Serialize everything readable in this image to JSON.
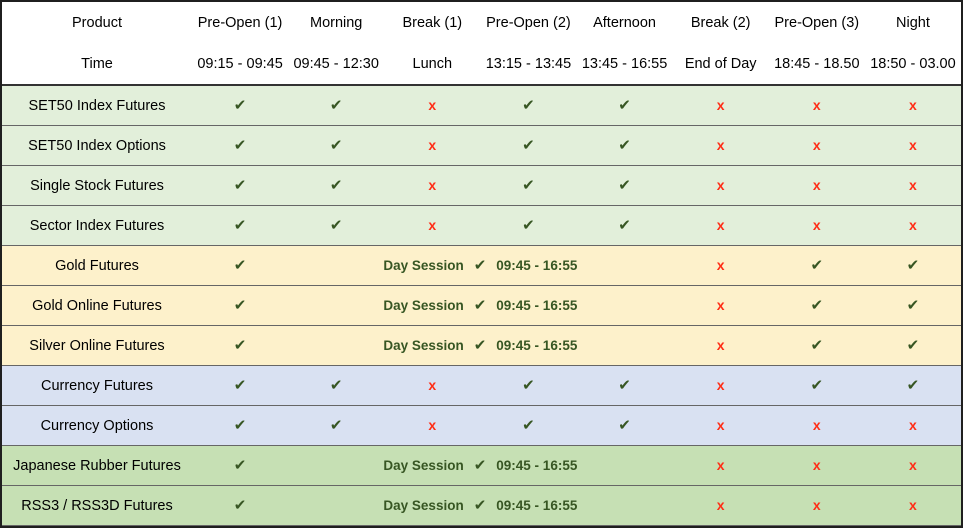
{
  "table": {
    "columns": [
      {
        "label": "Product",
        "time": "Time"
      },
      {
        "label": "Pre-Open (1)",
        "time": "09:15 - 09:45"
      },
      {
        "label": "Morning",
        "time": "09:45 - 12:30"
      },
      {
        "label": "Break (1)",
        "time": "Lunch"
      },
      {
        "label": "Pre-Open (2)",
        "time": "13:15 - 13:45"
      },
      {
        "label": "Afternoon",
        "time": "13:45 - 16:55"
      },
      {
        "label": "Break (2)",
        "time": "End of Day"
      },
      {
        "label": "Pre-Open (3)",
        "time": "18:45 - 18.50"
      },
      {
        "label": "Night",
        "time": "18:50 - 03.00"
      }
    ],
    "day_session": {
      "label": "Day Session",
      "time": "09:45 - 16:55",
      "span": 4
    },
    "marks": {
      "check_glyph": "✔",
      "cross_glyph": "x"
    },
    "rows": [
      {
        "product": "SET50 Index Futures",
        "group": "index",
        "cells": [
          "check",
          "check",
          "cross",
          "check",
          "check",
          "cross",
          "cross",
          "cross"
        ]
      },
      {
        "product": "SET50 Index Options",
        "group": "index",
        "cells": [
          "check",
          "check",
          "cross",
          "check",
          "check",
          "cross",
          "cross",
          "cross"
        ]
      },
      {
        "product": "Single Stock Futures",
        "group": "index",
        "cells": [
          "check",
          "check",
          "cross",
          "check",
          "check",
          "cross",
          "cross",
          "cross"
        ]
      },
      {
        "product": "Sector Index Futures",
        "group": "index",
        "cells": [
          "check",
          "check",
          "cross",
          "check",
          "check",
          "cross",
          "cross",
          "cross"
        ]
      },
      {
        "product": "Gold Futures",
        "group": "gold",
        "cells": [
          "check",
          "day_session",
          "cross",
          "check",
          "check"
        ]
      },
      {
        "product": "Gold Online Futures",
        "group": "gold",
        "cells": [
          "check",
          "day_session",
          "cross",
          "check",
          "check"
        ]
      },
      {
        "product": "Silver Online Futures",
        "group": "gold",
        "cells": [
          "check",
          "day_session",
          "cross",
          "check",
          "check"
        ]
      },
      {
        "product": "Currency Futures",
        "group": "currency",
        "cells": [
          "check",
          "check",
          "cross",
          "check",
          "check",
          "cross",
          "check",
          "check"
        ]
      },
      {
        "product": "Currency Options",
        "group": "currency",
        "cells": [
          "check",
          "check",
          "cross",
          "check",
          "check",
          "cross",
          "cross",
          "cross"
        ]
      },
      {
        "product": "Japanese Rubber Futures",
        "group": "rubber",
        "cells": [
          "check",
          "day_session",
          "cross",
          "cross",
          "cross"
        ]
      },
      {
        "product": "RSS3 / RSS3D Futures",
        "group": "rubber",
        "cells": [
          "check",
          "day_session",
          "cross",
          "cross",
          "cross"
        ]
      }
    ]
  },
  "colors": {
    "group_index_bg": "#e2efda",
    "group_gold_bg": "#fdf1cb",
    "group_currency_bg": "#d9e1f2",
    "group_rubber_bg": "#c6e0b4",
    "check": "#375623",
    "cross": "#ff2d16",
    "day_session_text": "#375623",
    "header_bg": "#ffffff",
    "grid_line": "#666666",
    "header_rule": "#333333",
    "outer_border": "#1f1f1f"
  }
}
